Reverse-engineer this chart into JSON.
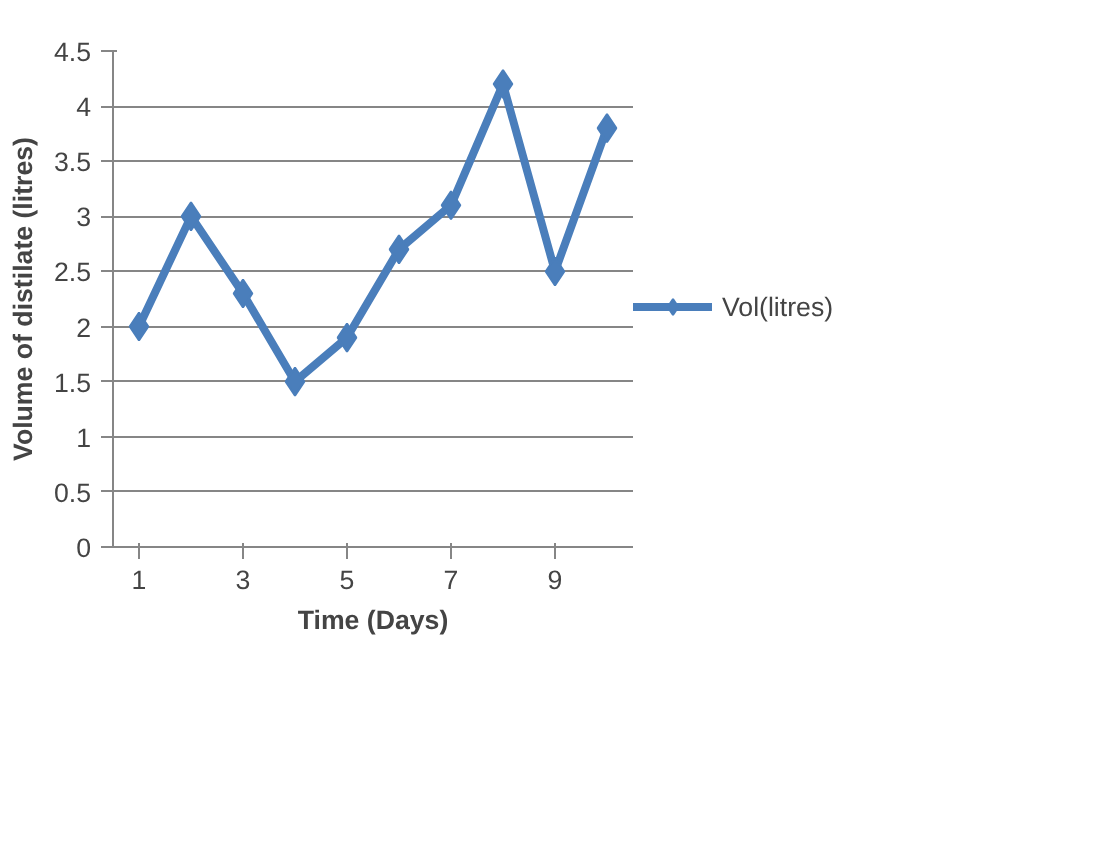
{
  "chart_data": {
    "type": "line",
    "xlabel": "Time (Days)",
    "ylabel": "Volume of distilate (litres)",
    "categories": [
      "1",
      null,
      "3",
      null,
      "5",
      null,
      "7",
      null,
      "9",
      null
    ],
    "series": [
      {
        "name": "Vol(litres)",
        "color": "#4a7ebb",
        "values": [
          2,
          3,
          2.3,
          1.5,
          1.9,
          2.7,
          3.1,
          4.2,
          2.5,
          3.8
        ]
      }
    ],
    "ylim": [
      0,
      4.5
    ],
    "yticks": [
      0,
      0.5,
      1,
      1.5,
      2,
      2.5,
      3,
      3.5,
      4,
      4.5
    ],
    "grid": "y",
    "legend": "right",
    "marker": "diamond",
    "line_style": "solid"
  }
}
